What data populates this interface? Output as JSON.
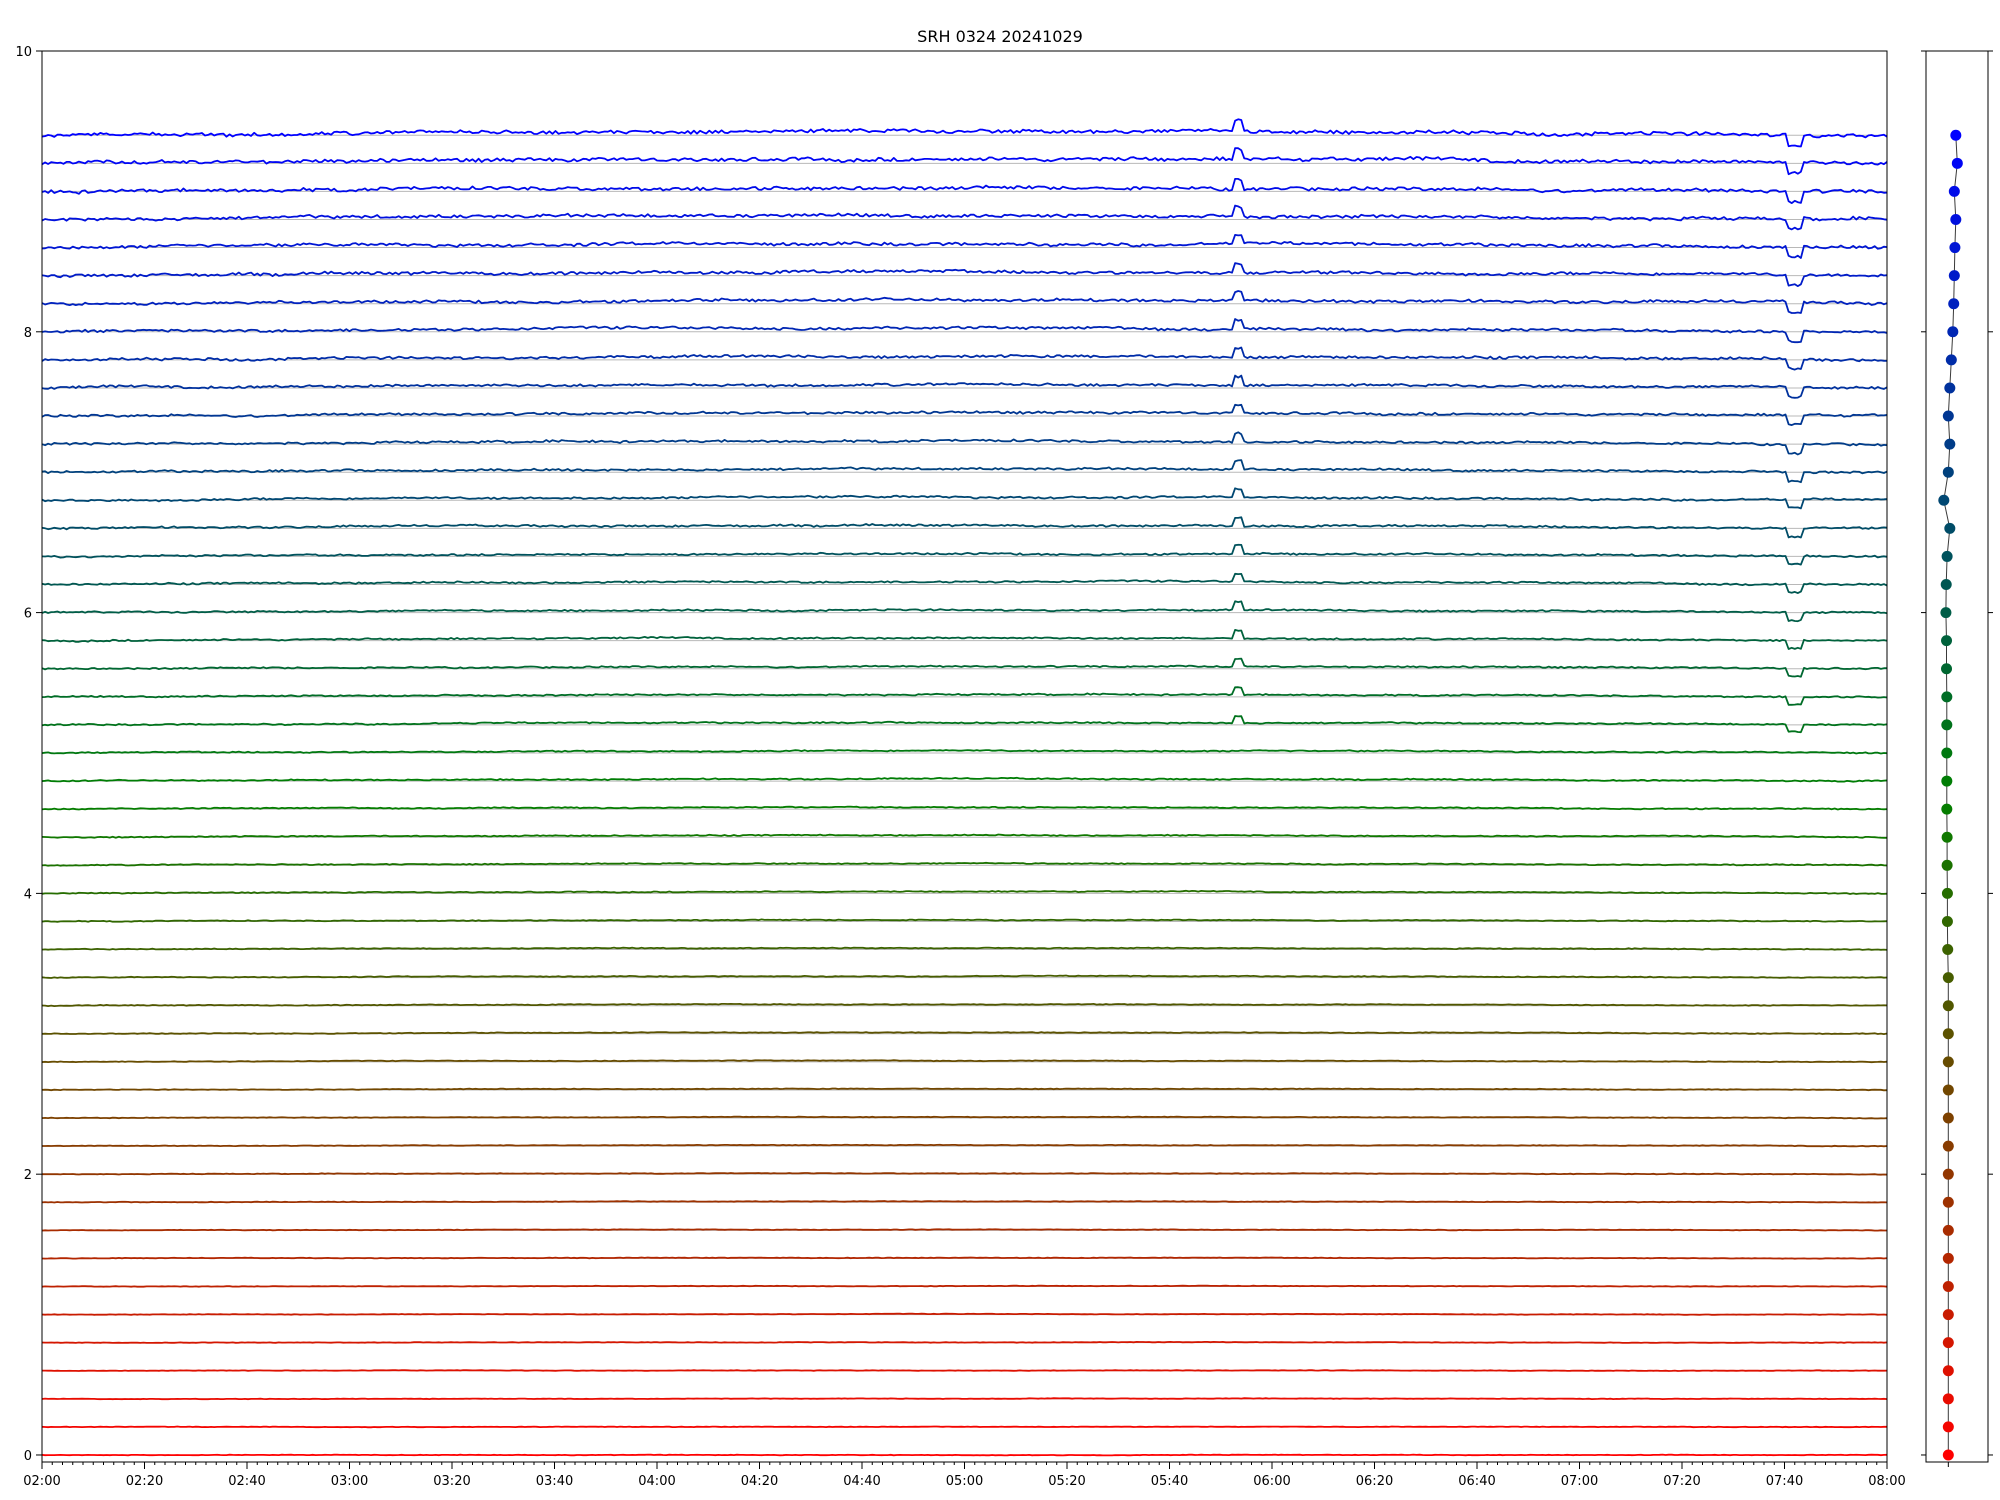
{
  "chart_data": {
    "type": "line",
    "title": "SRH 0324 20241029",
    "xlabel": "",
    "ylabel": "",
    "x_tick_labels": [
      "02:00",
      "02:20",
      "02:40",
      "03:00",
      "03:20",
      "03:40",
      "04:00",
      "04:20",
      "04:40",
      "05:00",
      "05:20",
      "05:40",
      "06:00",
      "06:20",
      "06:40",
      "07:00",
      "07:20",
      "07:40",
      "08:00"
    ],
    "x_range": [
      "02:00",
      "08:00"
    ],
    "y_tick_labels": [
      "0",
      "2",
      "4",
      "6",
      "8",
      "10"
    ],
    "ylim": [
      -0.05,
      10
    ],
    "grid": "horizontal baseline per trace",
    "n_traces": 48,
    "trace_spacing": 0.2,
    "color_gradient": {
      "start": "#ff0000",
      "middle": "#008000",
      "end": "#0000ff"
    },
    "series": [
      {
        "offset": 0.0
      },
      {
        "offset": 0.2
      },
      {
        "offset": 0.4
      },
      {
        "offset": 0.6
      },
      {
        "offset": 0.8
      },
      {
        "offset": 1.0
      },
      {
        "offset": 1.2
      },
      {
        "offset": 1.4
      },
      {
        "offset": 1.6
      },
      {
        "offset": 1.8
      },
      {
        "offset": 2.0
      },
      {
        "offset": 2.2
      },
      {
        "offset": 2.4
      },
      {
        "offset": 2.6
      },
      {
        "offset": 2.8
      },
      {
        "offset": 3.0
      },
      {
        "offset": 3.2
      },
      {
        "offset": 3.4
      },
      {
        "offset": 3.6
      },
      {
        "offset": 3.8
      },
      {
        "offset": 4.0
      },
      {
        "offset": 4.2
      },
      {
        "offset": 4.4
      },
      {
        "offset": 4.6
      },
      {
        "offset": 4.8
      },
      {
        "offset": 5.0
      },
      {
        "offset": 5.2
      },
      {
        "offset": 5.4
      },
      {
        "offset": 5.6
      },
      {
        "offset": 5.8
      },
      {
        "offset": 6.0
      },
      {
        "offset": 6.2
      },
      {
        "offset": 6.4
      },
      {
        "offset": 6.6
      },
      {
        "offset": 6.8
      },
      {
        "offset": 7.0
      },
      {
        "offset": 7.2
      },
      {
        "offset": 7.4
      },
      {
        "offset": 7.6
      },
      {
        "offset": 7.8
      },
      {
        "offset": 8.0
      },
      {
        "offset": 8.2
      },
      {
        "offset": 8.4
      },
      {
        "offset": 8.6
      },
      {
        "offset": 8.8
      },
      {
        "offset": 9.0
      },
      {
        "offset": 9.2
      },
      {
        "offset": 9.4
      }
    ],
    "side_panel": {
      "type": "scatter-line",
      "points": [
        [
          0.0,
          0.0
        ],
        [
          0.0,
          0.2
        ],
        [
          0.0,
          0.4
        ],
        [
          0.0,
          0.6
        ],
        [
          0.0,
          0.8
        ],
        [
          0.0,
          1.0
        ],
        [
          0.0,
          1.2
        ],
        [
          0.0,
          1.4
        ],
        [
          0.0,
          1.6
        ],
        [
          0.0,
          1.8
        ],
        [
          0.0,
          2.0
        ],
        [
          0.0,
          2.2
        ],
        [
          0.0,
          2.4
        ],
        [
          0.0,
          2.6
        ],
        [
          0.0,
          2.8
        ],
        [
          0.0,
          3.0
        ],
        [
          0.0,
          3.2
        ],
        [
          0.0,
          3.4
        ],
        [
          -0.02,
          3.6
        ],
        [
          -0.03,
          3.8
        ],
        [
          -0.03,
          4.0
        ],
        [
          -0.04,
          4.2
        ],
        [
          -0.04,
          4.4
        ],
        [
          -0.05,
          4.6
        ],
        [
          -0.05,
          4.8
        ],
        [
          -0.05,
          5.0
        ],
        [
          -0.05,
          5.2
        ],
        [
          -0.05,
          5.4
        ],
        [
          -0.06,
          5.6
        ],
        [
          -0.06,
          5.8
        ],
        [
          -0.08,
          6.0
        ],
        [
          -0.07,
          6.2
        ],
        [
          -0.04,
          6.4
        ],
        [
          0.05,
          6.6
        ],
        [
          -0.15,
          6.8
        ],
        [
          0.0,
          7.0
        ],
        [
          0.05,
          7.2
        ],
        [
          0.0,
          7.4
        ],
        [
          0.05,
          7.6
        ],
        [
          0.1,
          7.8
        ],
        [
          0.15,
          8.0
        ],
        [
          0.18,
          8.2
        ],
        [
          0.2,
          8.4
        ],
        [
          0.22,
          8.6
        ],
        [
          0.25,
          8.8
        ],
        [
          0.2,
          9.0
        ],
        [
          0.3,
          9.2
        ],
        [
          0.25,
          9.4
        ]
      ]
    }
  }
}
